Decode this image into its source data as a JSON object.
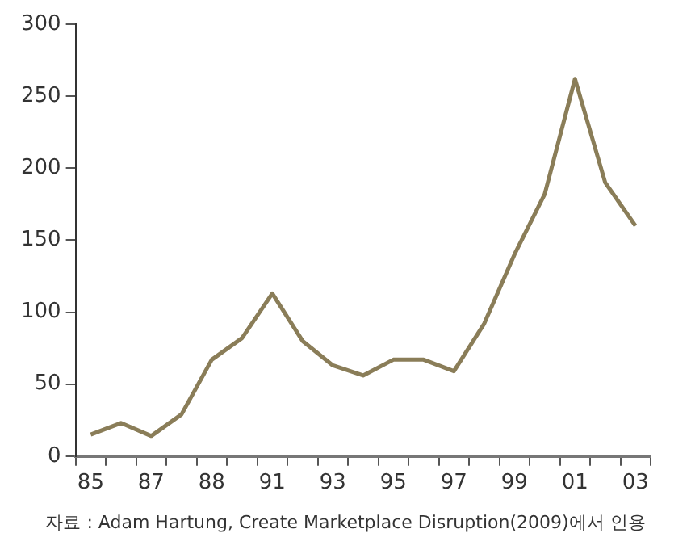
{
  "chart_data": {
    "type": "line",
    "categories": [
      "85",
      null,
      "87",
      null,
      "88",
      null,
      "91",
      null,
      "93",
      null,
      "95",
      null,
      "97",
      null,
      "99",
      null,
      "01",
      null,
      "03"
    ],
    "series": [
      {
        "color": "#8a7d58",
        "values": [
          15,
          23,
          14,
          29,
          67,
          82,
          113,
          80,
          63,
          56,
          67,
          67,
          59,
          92,
          140,
          182,
          262,
          190,
          160
        ]
      }
    ],
    "ylim": [
      0,
      300
    ],
    "yticks": [
      0,
      50,
      100,
      150,
      200,
      250,
      300
    ],
    "grid": false,
    "legend": false,
    "marker": "none",
    "line_style": "solid",
    "annotations": [
      "자료 : Adam Hartung, Create Marketplace Disruption(2009)에서 인용"
    ]
  }
}
